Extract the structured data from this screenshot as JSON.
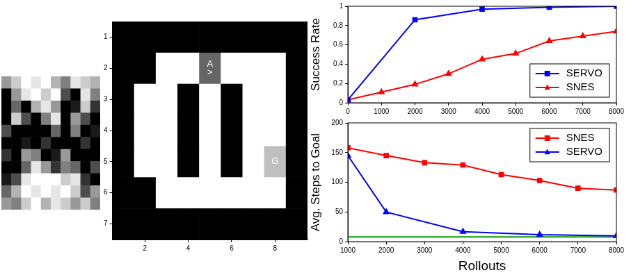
{
  "chart_data": [
    {
      "type": "heatmap",
      "tick_labels": false,
      "cells": [
        [
          0.6,
          0.8,
          1.0,
          0.9,
          1.0,
          0.7,
          0.5,
          0.9,
          0.8,
          0.7
        ],
        [
          0.0,
          0.6,
          0.9,
          1.0,
          0.8,
          1.0,
          0.3,
          0.0,
          0.9,
          0.5
        ],
        [
          0.0,
          0.4,
          0.0,
          0.7,
          0.9,
          0.6,
          0.0,
          0.1,
          0.8,
          0.2
        ],
        [
          0.0,
          0.8,
          0.3,
          0.0,
          0.5,
          0.9,
          0.0,
          0.6,
          0.3,
          0.0
        ],
        [
          0.3,
          0.0,
          0.0,
          0.0,
          0.0,
          0.4,
          0.0,
          0.5,
          0.0,
          0.1
        ],
        [
          0.0,
          0.0,
          0.1,
          0.0,
          0.2,
          0.0,
          0.0,
          0.0,
          0.2,
          0.0
        ],
        [
          0.2,
          0.0,
          0.6,
          0.5,
          0.0,
          0.1,
          0.6,
          0.0,
          0.0,
          0.0
        ],
        [
          0.0,
          0.0,
          0.4,
          0.9,
          0.6,
          0.2,
          0.5,
          0.4,
          0.0,
          0.3
        ],
        [
          0.1,
          0.3,
          0.9,
          1.0,
          1.0,
          1.0,
          0.8,
          0.9,
          0.2,
          0.0
        ],
        [
          0.4,
          0.7,
          1.0,
          0.9,
          1.0,
          0.9,
          1.0,
          0.8,
          0.3,
          0.6
        ],
        [
          0.6,
          0.5,
          0.8,
          1.0,
          0.7,
          0.9,
          0.8,
          0.6,
          0.8,
          0.5
        ]
      ]
    },
    {
      "type": "heatmap",
      "xlim": [
        0.5,
        9.5
      ],
      "ylim": [
        7.5,
        0.5
      ],
      "xticks": [
        2,
        4,
        6,
        8
      ],
      "yticks": [
        1,
        2,
        3,
        4,
        5,
        6,
        7
      ],
      "cells": [
        [
          0,
          0,
          0,
          0,
          0,
          0,
          0,
          0,
          0
        ],
        [
          0,
          0,
          1,
          1,
          0.4,
          1,
          1,
          1,
          0
        ],
        [
          0,
          1,
          1,
          0,
          1,
          0,
          1,
          1,
          0
        ],
        [
          0,
          1,
          1,
          0,
          1,
          0,
          1,
          1,
          0
        ],
        [
          0,
          1,
          1,
          0,
          1,
          0,
          1,
          0.75,
          0
        ],
        [
          0,
          0,
          1,
          1,
          1,
          1,
          1,
          1,
          0
        ],
        [
          0,
          0,
          0,
          0,
          0,
          0,
          0,
          0,
          0
        ]
      ],
      "annotations": [
        {
          "x": 5,
          "y": 2,
          "text": "A"
        },
        {
          "x": 5,
          "y": 2,
          "text": ">"
        },
        {
          "x": 8,
          "y": 5,
          "text": "G"
        }
      ]
    },
    {
      "type": "line",
      "ylabel": "Success Rate",
      "xlim": [
        0,
        8000
      ],
      "xticks": [
        0,
        1000,
        2000,
        3000,
        4000,
        5000,
        6000,
        7000,
        8000
      ],
      "ylim": [
        0,
        1
      ],
      "yticks": [
        0,
        0.2,
        0.4,
        0.6,
        0.8,
        1
      ],
      "grid": false,
      "legend": "lower right",
      "series": [
        {
          "name": "SERVO",
          "color": "#0000ff",
          "marker": "square",
          "x": [
            0,
            2000,
            4000,
            6000,
            8000
          ],
          "values": [
            0.03,
            0.86,
            0.97,
            0.99,
            1.0
          ]
        },
        {
          "name": "SNES",
          "color": "#ff0000",
          "marker": "triangle",
          "x": [
            0,
            1000,
            2000,
            3000,
            4000,
            5000,
            6000,
            7000,
            8000
          ],
          "values": [
            0.03,
            0.11,
            0.19,
            0.3,
            0.45,
            0.51,
            0.64,
            0.69,
            0.74
          ]
        }
      ]
    },
    {
      "type": "line",
      "ylabel": "Avg. Steps to Goal",
      "xlabel": "Rollouts",
      "xlim": [
        1000,
        8000
      ],
      "xticks": [
        1000,
        2000,
        3000,
        4000,
        5000,
        6000,
        7000,
        8000
      ],
      "ylim": [
        0,
        200
      ],
      "yticks": [
        0,
        50,
        100,
        150,
        200
      ],
      "grid": false,
      "legend": "upper right",
      "series": [
        {
          "name": "SNES",
          "color": "#ff0000",
          "marker": "square",
          "x": [
            1000,
            2000,
            3000,
            4000,
            5000,
            6000,
            7000,
            8000
          ],
          "values": [
            158,
            145,
            133,
            129,
            113,
            103,
            90,
            87
          ]
        },
        {
          "name": "SERVO",
          "color": "#0000ff",
          "marker": "triangle",
          "x": [
            1000,
            2000,
            4000,
            6000,
            8000
          ],
          "values": [
            145,
            50,
            17,
            12,
            10
          ]
        },
        {
          "color": "#00a000",
          "x": [
            1000,
            8000
          ],
          "values": [
            8,
            8
          ]
        }
      ]
    }
  ]
}
